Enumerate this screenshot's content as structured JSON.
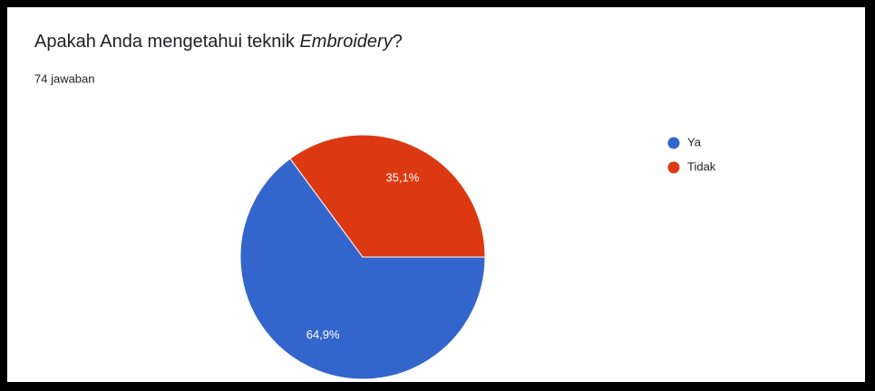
{
  "chart_data": {
    "type": "pie",
    "title": [
      "Apakah Anda mengetahui teknik ",
      "Embroidery",
      "?"
    ],
    "subtitle": "74 jawaban",
    "categories": [
      "Ya",
      "Tidak"
    ],
    "values": [
      64.9,
      35.1
    ],
    "value_labels": [
      "64,9%",
      "35,1%"
    ],
    "colors": [
      "#3366cc",
      "#dc3912"
    ],
    "legend": "right"
  }
}
